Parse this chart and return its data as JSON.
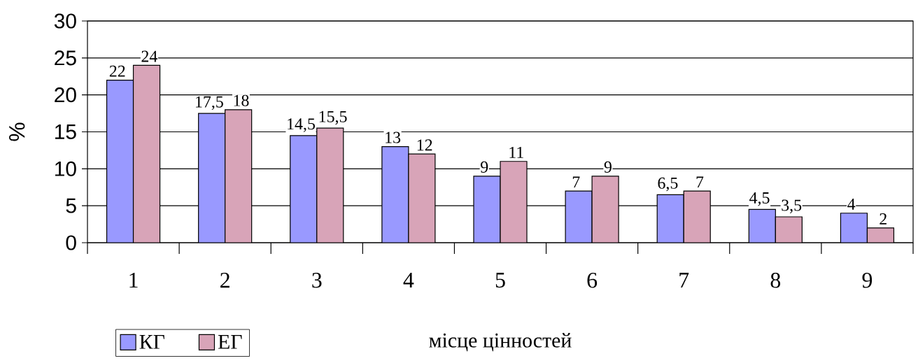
{
  "chart_data": {
    "type": "bar",
    "xlabel": "місце цінностей",
    "ylabel": "%",
    "categories": [
      "1",
      "2",
      "3",
      "4",
      "5",
      "6",
      "7",
      "8",
      "9"
    ],
    "series": [
      {
        "name": "КГ",
        "color": "#9999ff",
        "values": [
          22,
          17.5,
          14.5,
          13,
          9,
          7,
          6.5,
          4.5,
          4
        ],
        "value_labels": [
          "22",
          "17,5",
          "14,5",
          "13",
          "9",
          "7",
          "6,5",
          "4,5",
          "4"
        ]
      },
      {
        "name": "ЕГ",
        "color": "#d8a4b8",
        "values": [
          24,
          18,
          15.5,
          12,
          11,
          9,
          7,
          3.5,
          2
        ],
        "value_labels": [
          "24",
          "18",
          "15,5",
          "12",
          "11",
          "9",
          "7",
          "3,5",
          "2"
        ]
      }
    ],
    "ylim": [
      0,
      30
    ],
    "yticks": [
      0,
      5,
      10,
      15,
      20,
      25,
      30
    ],
    "grid": "y",
    "legend": "bottom left"
  }
}
